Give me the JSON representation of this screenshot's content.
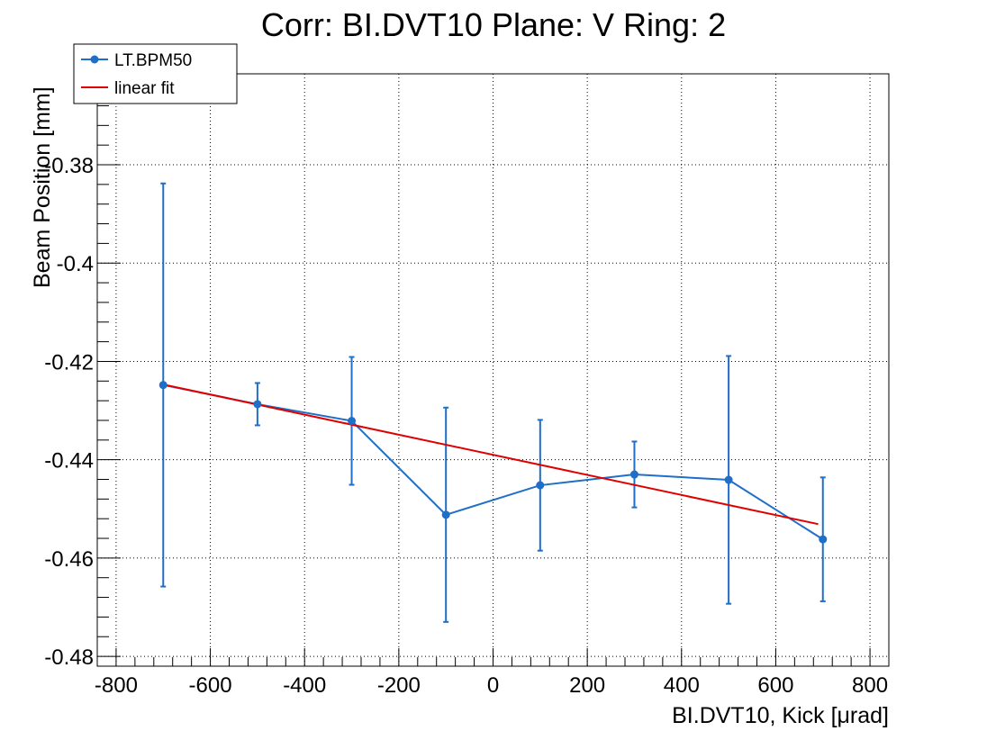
{
  "chart_data": {
    "type": "line",
    "title": "Corr: BI.DVT10 Plane: V Ring: 2",
    "xlabel": "BI.DVT10, Kick [μrad]",
    "ylabel": "Beam Position [mm]",
    "xlim": [
      -840,
      840
    ],
    "ylim": [
      -0.482,
      -0.3615
    ],
    "grid": true,
    "legend_position": "top-left",
    "x_ticks": [
      -800,
      -600,
      -400,
      -200,
      0,
      200,
      400,
      600,
      800
    ],
    "x_tick_labels": [
      "-800",
      "-600",
      "-400",
      "-200",
      "0",
      "200",
      "400",
      "600",
      "800"
    ],
    "y_ticks": [
      -0.48,
      -0.46,
      -0.44,
      -0.42,
      -0.4,
      -0.38
    ],
    "y_tick_labels": [
      "-0.48",
      "-0.46",
      "-0.44",
      "-0.42",
      "-0.4",
      "-0.38"
    ],
    "series": [
      {
        "name": "LT.BPM50",
        "color": "#1f6ec8",
        "marker": "circle",
        "x": [
          -700,
          -500,
          -300,
          -100,
          100,
          300,
          500,
          700
        ],
        "y": [
          -0.4248,
          -0.4287,
          -0.4321,
          -0.4512,
          -0.4452,
          -0.443,
          -0.4441,
          -0.4562
        ],
        "y_err": [
          0.041,
          0.0043,
          0.013,
          0.0218,
          0.0133,
          0.0067,
          0.0252,
          0.0126
        ]
      },
      {
        "name": "linear fit",
        "color": "#e00000",
        "marker": "none",
        "x": [
          -700,
          690
        ],
        "y": [
          -0.4247,
          -0.4531
        ]
      }
    ]
  }
}
